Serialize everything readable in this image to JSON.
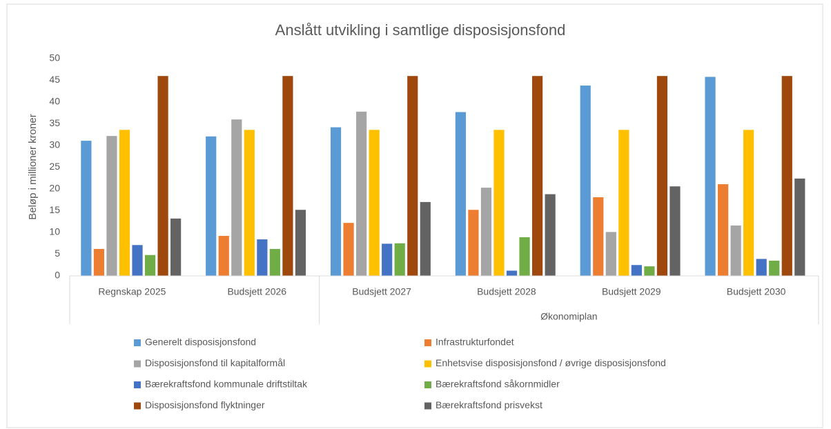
{
  "chart_data": {
    "type": "bar",
    "title": "Anslått utvikling i samtlige disposisjonsfond",
    "y_label": "Beløp i millioner kroner",
    "categories": [
      "Regnskap 2025",
      "Budsjett 2026",
      "Budsjett 2027",
      "Budsjett 2028",
      "Budsjett 2029",
      "Budsjett 2030"
    ],
    "category_groups": [
      {
        "label": "Økonomiplan",
        "start": 2,
        "end": 5
      }
    ],
    "series": [
      {
        "name": "Generelt disposisjonsfond",
        "color": "#5b9bd5",
        "values": [
          31.1,
          32.1,
          34.2,
          37.7,
          43.8,
          45.8
        ]
      },
      {
        "name": "Infrastrukturfondet",
        "color": "#ed7d31",
        "values": [
          6.2,
          9.2,
          12.2,
          15.2,
          18.1,
          21.1
        ]
      },
      {
        "name": "Disposisjonsfond til kapitalformål",
        "color": "#a5a5a5",
        "values": [
          32.2,
          36.0,
          37.8,
          20.3,
          10.1,
          11.6
        ]
      },
      {
        "name": "Enhetsvise disposisjonsfond / øvrige disposisjonsfond",
        "color": "#ffc000",
        "values": [
          33.6,
          33.6,
          33.6,
          33.6,
          33.6,
          33.6
        ]
      },
      {
        "name": "Bærekraftsfond kommunale driftstiltak",
        "color": "#4472c4",
        "values": [
          7.1,
          8.4,
          7.4,
          1.2,
          2.5,
          3.9
        ]
      },
      {
        "name": "Bærekraftsfond såkornmidler",
        "color": "#70ad47",
        "values": [
          4.8,
          6.2,
          7.5,
          8.9,
          2.2,
          3.5
        ]
      },
      {
        "name": "Disposisjonsfond flyktninger",
        "color": "#9e480e",
        "values": [
          46.0,
          46.0,
          46.0,
          46.0,
          46.0,
          46.0
        ]
      },
      {
        "name": "Bærekraftsfond prisvekst",
        "color": "#636363",
        "values": [
          13.2,
          15.2,
          17.0,
          18.8,
          20.6,
          22.4
        ]
      }
    ],
    "ylim": [
      0,
      50
    ],
    "yticks": [
      0,
      5,
      10,
      15,
      20,
      25,
      30,
      35,
      40,
      45,
      50
    ],
    "grid": false,
    "legend": "bottom"
  }
}
